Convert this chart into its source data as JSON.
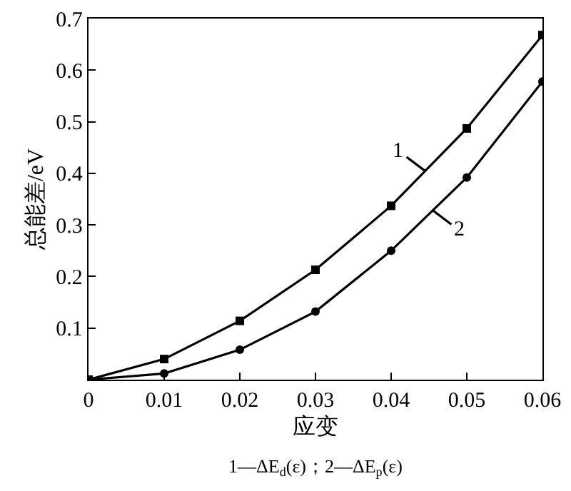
{
  "chart_data": {
    "type": "line",
    "xlabel": "应变",
    "ylabel": "总能差/eV",
    "x": [
      0,
      0.01,
      0.02,
      0.03,
      0.04,
      0.05,
      0.06
    ],
    "series": [
      {
        "name": "1",
        "color": "#000000",
        "marker": "square",
        "values": [
          0,
          0.04,
          0.114,
          0.213,
          0.337,
          0.487,
          0.668
        ]
      },
      {
        "name": "2",
        "color": "#000000",
        "marker": "circle",
        "values": [
          0,
          0.012,
          0.058,
          0.132,
          0.25,
          0.392,
          0.578
        ]
      }
    ],
    "xlim": [
      0,
      0.06
    ],
    "xticks": [
      0,
      0.01,
      0.02,
      0.03,
      0.04,
      0.05,
      0.06
    ],
    "ylim": [
      0,
      0.7
    ],
    "yticks": [
      0.1,
      0.2,
      0.3,
      0.4,
      0.5,
      0.6,
      0.7
    ],
    "grid": false,
    "legend": "right",
    "line_style": "solid",
    "annotations": [
      "1—ΔE$_{d}$(ε)；2—ΔE$_{p}$(ε)"
    ]
  }
}
